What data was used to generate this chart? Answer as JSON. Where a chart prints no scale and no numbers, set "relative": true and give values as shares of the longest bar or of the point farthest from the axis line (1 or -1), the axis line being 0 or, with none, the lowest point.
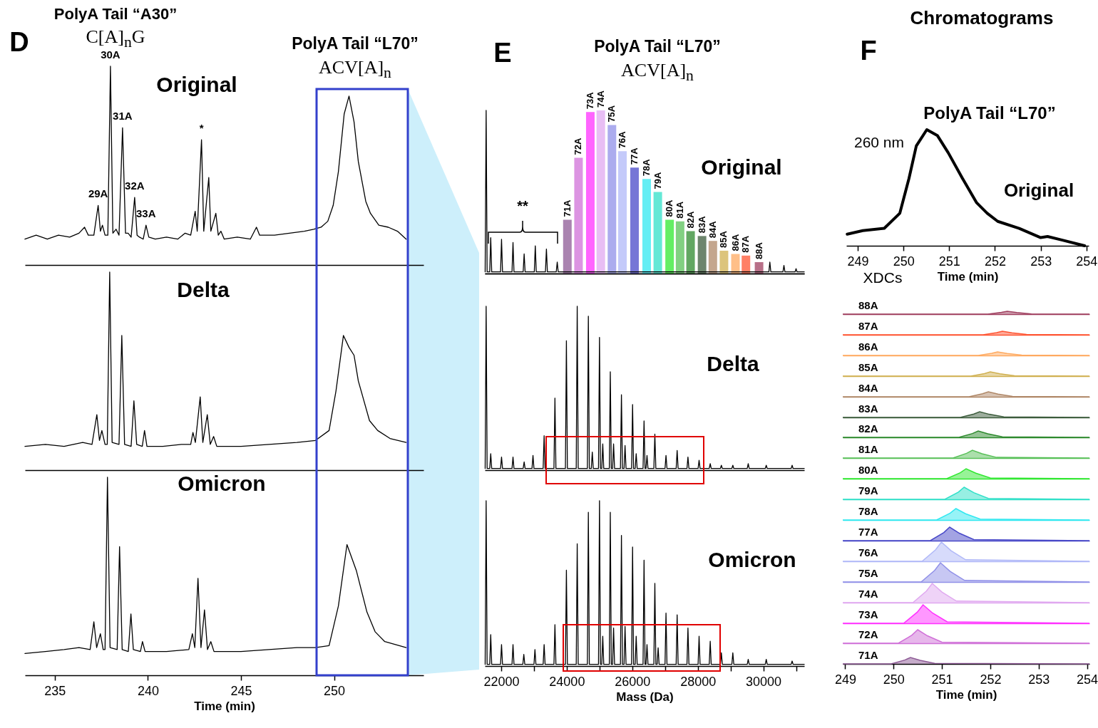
{
  "chart_data": [
    {
      "type": "line",
      "title": "Original",
      "relative": true,
      "xlim": [
        233.4,
        254.8
      ],
      "tick_labels": false,
      "annotations": [
        "D",
        "PolyA Tail “A30”",
        "C[A]$_{n}$G",
        "PolyA Tail “L70”",
        "ACV[A]$_{n}$",
        {
          "text": "29A",
          "x": 237.33,
          "y": 0.3
        },
        {
          "text": "30A",
          "x": 237.99,
          "y": 1.0
        },
        {
          "text": "31A",
          "x": 238.64,
          "y": 0.69
        },
        {
          "text": "32A",
          "x": 239.29,
          "y": 0.34
        },
        {
          "text": "33A",
          "x": 239.9,
          "y": 0.2
        },
        {
          "text": "*",
          "x": 242.88,
          "y": 0.63
        }
      ],
      "x": [
        233.4,
        234.0,
        234.6,
        235.2,
        235.8,
        236.3,
        236.6,
        236.8,
        237.1,
        237.33,
        237.45,
        237.56,
        237.7,
        237.85,
        237.99,
        238.12,
        238.29,
        238.45,
        238.64,
        238.8,
        238.94,
        239.1,
        239.29,
        239.42,
        239.55,
        239.75,
        239.9,
        240.05,
        240.4,
        241.0,
        241.6,
        242.0,
        242.3,
        242.54,
        242.65,
        242.88,
        243.0,
        243.27,
        243.38,
        243.65,
        243.78,
        243.92,
        244.1,
        244.8,
        245.5,
        245.83,
        246.0,
        246.8,
        247.6,
        248.4,
        248.9,
        249.3,
        249.66,
        249.95,
        250.23,
        250.54,
        250.8,
        251.07,
        251.3,
        251.46,
        251.7,
        251.95,
        252.4,
        252.91,
        253.4,
        253.87
      ],
      "series": [
        {
          "color": "#000000",
          "values": [
            0.13,
            0.15,
            0.13,
            0.15,
            0.14,
            0.16,
            0.19,
            0.15,
            0.15,
            0.3,
            0.17,
            0.2,
            0.15,
            0.15,
            1.0,
            0.16,
            0.18,
            0.15,
            0.69,
            0.16,
            0.16,
            0.14,
            0.34,
            0.15,
            0.14,
            0.13,
            0.2,
            0.14,
            0.13,
            0.14,
            0.13,
            0.16,
            0.15,
            0.27,
            0.17,
            0.63,
            0.17,
            0.44,
            0.17,
            0.26,
            0.15,
            0.17,
            0.13,
            0.14,
            0.13,
            0.19,
            0.15,
            0.15,
            0.16,
            0.17,
            0.18,
            0.19,
            0.22,
            0.3,
            0.47,
            0.76,
            0.85,
            0.72,
            0.52,
            0.44,
            0.32,
            0.26,
            0.2,
            0.19,
            0.17,
            0.13
          ]
        }
      ]
    },
    {
      "type": "line",
      "title": "Delta",
      "relative": true,
      "xlim": [
        233.4,
        254.8
      ],
      "tick_labels": false,
      "x": [
        233.4,
        234.5,
        235.5,
        236.5,
        237.0,
        237.26,
        237.4,
        237.53,
        237.7,
        237.82,
        237.95,
        238.08,
        238.45,
        238.6,
        238.75,
        239.1,
        239.25,
        239.4,
        239.7,
        239.82,
        239.95,
        240.8,
        241.8,
        242.3,
        242.42,
        242.55,
        242.81,
        242.95,
        243.19,
        243.35,
        243.53,
        243.7,
        245.0,
        246.5,
        248.0,
        249.0,
        249.73,
        250.1,
        250.5,
        250.8,
        251.07,
        251.3,
        251.57,
        251.9,
        252.34,
        253.0,
        253.87
      ],
      "series": [
        {
          "color": "#000000",
          "values": [
            0.12,
            0.13,
            0.12,
            0.14,
            0.13,
            0.28,
            0.15,
            0.2,
            0.13,
            0.13,
            1.0,
            0.14,
            0.13,
            0.68,
            0.13,
            0.12,
            0.35,
            0.13,
            0.12,
            0.2,
            0.12,
            0.12,
            0.13,
            0.13,
            0.19,
            0.14,
            0.37,
            0.14,
            0.28,
            0.13,
            0.17,
            0.12,
            0.12,
            0.13,
            0.14,
            0.15,
            0.2,
            0.4,
            0.68,
            0.62,
            0.58,
            0.45,
            0.36,
            0.25,
            0.2,
            0.16,
            0.14
          ]
        }
      ]
    },
    {
      "type": "line",
      "title": "Omicron",
      "relative": true,
      "xlim": [
        233.4,
        254.8
      ],
      "xticks": [
        235,
        240,
        245,
        250
      ],
      "xlabel": "Time (min)",
      "x": [
        233.4,
        234.5,
        235.5,
        236.3,
        236.9,
        237.1,
        237.25,
        237.45,
        237.6,
        237.7,
        237.83,
        237.97,
        238.35,
        238.48,
        238.62,
        238.95,
        239.09,
        239.22,
        239.6,
        239.71,
        239.85,
        241.0,
        242.2,
        242.39,
        242.52,
        242.69,
        242.85,
        243.04,
        243.2,
        243.38,
        243.55,
        245.0,
        246.5,
        248.0,
        249.0,
        249.73,
        250.23,
        250.69,
        251.19,
        251.76,
        252.2,
        252.72,
        253.87
      ],
      "series": [
        {
          "color": "#000000",
          "values": [
            0.11,
            0.12,
            0.13,
            0.14,
            0.13,
            0.27,
            0.14,
            0.21,
            0.13,
            0.13,
            1.0,
            0.14,
            0.13,
            0.65,
            0.13,
            0.12,
            0.31,
            0.13,
            0.12,
            0.17,
            0.12,
            0.12,
            0.13,
            0.21,
            0.14,
            0.49,
            0.14,
            0.33,
            0.13,
            0.17,
            0.12,
            0.12,
            0.13,
            0.14,
            0.14,
            0.15,
            0.35,
            0.66,
            0.53,
            0.32,
            0.22,
            0.17,
            0.14
          ]
        }
      ]
    },
    {
      "type": "bar",
      "title": "Original",
      "relative": true,
      "xlim": [
        21500,
        31250
      ],
      "tick_labels": false,
      "annotations": [
        "E",
        "PolyA Tail “L70”",
        "ACV[A]$_{n}$",
        "**",
        {
          "text": "71A",
          "x": 24020,
          "y": 0.33
        },
        {
          "text": "72A",
          "x": 24360,
          "y": 0.71
        },
        {
          "text": "73A",
          "x": 24720,
          "y": 0.99
        },
        {
          "text": "74A",
          "x": 25040,
          "y": 1.0
        },
        {
          "text": "75A",
          "x": 25380,
          "y": 0.91
        },
        {
          "text": "76A",
          "x": 25700,
          "y": 0.75
        },
        {
          "text": "77A",
          "x": 26070,
          "y": 0.65
        },
        {
          "text": "78A",
          "x": 26440,
          "y": 0.58
        },
        {
          "text": "79A",
          "x": 26780,
          "y": 0.5
        },
        {
          "text": "80A",
          "x": 27140,
          "y": 0.33
        },
        {
          "text": "81A",
          "x": 27460,
          "y": 0.32
        },
        {
          "text": "82A",
          "x": 27780,
          "y": 0.26
        },
        {
          "text": "83A",
          "x": 28130,
          "y": 0.23
        },
        {
          "text": "84A",
          "x": 28460,
          "y": 0.2
        },
        {
          "text": "85A",
          "x": 28800,
          "y": 0.14
        },
        {
          "text": "86A",
          "x": 29150,
          "y": 0.12
        },
        {
          "text": "87A",
          "x": 29470,
          "y": 0.11
        },
        {
          "text": "88A",
          "x": 29870,
          "y": 0.07
        }
      ],
      "series": [
        {
          "x": [
            24020,
            24360,
            24720,
            25040,
            25380,
            25700,
            26070,
            26440,
            26780,
            27140,
            27460,
            27780,
            28130,
            28460,
            28800,
            29150,
            29470,
            29870
          ],
          "values": [
            0.33,
            0.71,
            0.99,
            1.0,
            0.91,
            0.75,
            0.65,
            0.58,
            0.5,
            0.33,
            0.32,
            0.26,
            0.23,
            0.2,
            0.14,
            0.12,
            0.11,
            0.07
          ],
          "colors": [
            "#8e5a96",
            "#d070d8",
            "#ff30ff",
            "#e0a8f0",
            "#9090e8",
            "#b0b8f8",
            "#4848c8",
            "#30e8f0",
            "#30e0c8",
            "#30e830",
            "#58c058",
            "#2e8a2e",
            "#3c5c3c",
            "#b08868",
            "#d0b050",
            "#ffaa60",
            "#ff5533",
            "#a04060"
          ]
        }
      ]
    },
    {
      "type": "line",
      "relative": true,
      "xlim": [
        21500,
        31250
      ],
      "tick_labels": false,
      "series": [
        {
          "color": "#000000",
          "x": [
            21510,
            21540,
            21570,
            21650,
            21680,
            21710,
            21980,
            22010,
            22040,
            22330,
            22360,
            22390,
            22670,
            22700,
            22730,
            23010,
            23040,
            23070,
            23350,
            23380,
            23410,
            23680,
            23710,
            23740,
            30170,
            30200,
            30230,
            30600,
            30630,
            30660,
            30970,
            31000,
            31030,
            31250
          ],
          "values": [
            0.01,
            1.0,
            0.01,
            0.01,
            0.22,
            0.01,
            0.01,
            0.21,
            0.01,
            0.01,
            0.19,
            0.01,
            0.01,
            0.12,
            0.01,
            0.01,
            0.17,
            0.01,
            0.01,
            0.15,
            0.01,
            0.01,
            0.07,
            0.01,
            0.01,
            0.07,
            0.01,
            0.01,
            0.05,
            0.01,
            0.01,
            0.03,
            0.01,
            0.01
          ]
        }
      ]
    },
    {
      "type": "line",
      "title": "Delta",
      "relative": true,
      "xlim": [
        21500,
        31250
      ],
      "tick_labels": false,
      "x": [
        21510,
        21540,
        21570,
        21650,
        21680,
        21710,
        21980,
        22010,
        22040,
        22330,
        22360,
        22390,
        22670,
        22700,
        22730,
        22940,
        22970,
        23000,
        23280,
        23310,
        23340,
        23610,
        23640,
        23670,
        23960,
        23990,
        24020,
        24290,
        24320,
        24350,
        24630,
        24660,
        24690,
        24750,
        24780,
        24810,
        24970,
        25000,
        25030,
        25070,
        25100,
        25130,
        25300,
        25330,
        25360,
        25400,
        25430,
        25460,
        25640,
        25670,
        25700,
        25750,
        25780,
        25810,
        25980,
        26010,
        26040,
        26090,
        26120,
        26150,
        26330,
        26360,
        26390,
        26420,
        26450,
        26480,
        26660,
        26690,
        26720,
        27000,
        27030,
        27060,
        27340,
        27370,
        27400,
        27670,
        27700,
        27730,
        28010,
        28040,
        28070,
        28350,
        28380,
        28410,
        28690,
        28720,
        28750,
        29040,
        29070,
        29100,
        29510,
        29540,
        29570,
        30060,
        30090,
        30120,
        30850,
        30880,
        30910,
        31250
      ],
      "series": [
        {
          "color": "#000000",
          "values": [
            0.01,
            1.0,
            0.01,
            0.01,
            0.1,
            0.01,
            0.01,
            0.08,
            0.01,
            0.01,
            0.08,
            0.01,
            0.01,
            0.05,
            0.01,
            0.01,
            0.09,
            0.01,
            0.01,
            0.21,
            0.01,
            0.01,
            0.44,
            0.01,
            0.01,
            0.79,
            0.01,
            0.01,
            1.0,
            0.01,
            0.01,
            0.94,
            0.01,
            0.01,
            0.11,
            0.01,
            0.01,
            0.81,
            0.01,
            0.01,
            0.16,
            0.01,
            0.01,
            0.6,
            0.01,
            0.01,
            0.16,
            0.01,
            0.01,
            0.46,
            0.01,
            0.01,
            0.15,
            0.01,
            0.01,
            0.4,
            0.01,
            0.01,
            0.1,
            0.01,
            0.01,
            0.3,
            0.01,
            0.01,
            0.09,
            0.01,
            0.01,
            0.22,
            0.01,
            0.01,
            0.09,
            0.01,
            0.01,
            0.12,
            0.01,
            0.01,
            0.08,
            0.01,
            0.01,
            0.06,
            0.01,
            0.01,
            0.04,
            0.01,
            0.01,
            0.03,
            0.01,
            0.01,
            0.03,
            0.01,
            0.01,
            0.04,
            0.01,
            0.01,
            0.03,
            0.01,
            0.01,
            0.03,
            0.01,
            0.01
          ]
        }
      ]
    },
    {
      "type": "line",
      "title": "Omicron",
      "relative": true,
      "xlim": [
        21500,
        31250
      ],
      "xticks": [
        22000,
        {
          "value": 23000,
          "label": null
        },
        24000,
        {
          "value": 25000,
          "label": null
        },
        26000,
        {
          "value": 27000,
          "label": null
        },
        28000,
        {
          "value": 29000,
          "label": null
        },
        30000,
        {
          "value": 31000,
          "label": null
        }
      ],
      "xlabel": "Mass (Da)",
      "x": [
        21510,
        21540,
        21570,
        21650,
        21680,
        21710,
        21980,
        22010,
        22040,
        22330,
        22360,
        22390,
        22660,
        22690,
        22720,
        23000,
        23030,
        23060,
        23280,
        23310,
        23340,
        23610,
        23640,
        23670,
        23960,
        23990,
        24020,
        24290,
        24320,
        24350,
        24630,
        24660,
        24690,
        24970,
        25000,
        25030,
        25070,
        25100,
        25130,
        25300,
        25330,
        25360,
        25400,
        25430,
        25460,
        25640,
        25670,
        25700,
        25750,
        25780,
        25810,
        25980,
        26010,
        26040,
        26090,
        26120,
        26150,
        26330,
        26360,
        26390,
        26420,
        26450,
        26480,
        26660,
        26690,
        26720,
        26760,
        26790,
        26820,
        27000,
        27030,
        27060,
        27340,
        27370,
        27400,
        27670,
        27700,
        27730,
        28010,
        28040,
        28070,
        28350,
        28380,
        28410,
        28690,
        28720,
        28750,
        29040,
        29070,
        29100,
        29510,
        29540,
        29570,
        30060,
        30090,
        30120,
        30850,
        30880,
        30910,
        31250
      ],
      "series": [
        {
          "color": "#000000",
          "values": [
            0.01,
            1.0,
            0.01,
            0.01,
            0.19,
            0.01,
            0.01,
            0.13,
            0.01,
            0.01,
            0.13,
            0.01,
            0.01,
            0.07,
            0.01,
            0.01,
            0.1,
            0.01,
            0.01,
            0.13,
            0.01,
            0.01,
            0.25,
            0.01,
            0.01,
            0.58,
            0.01,
            0.01,
            0.74,
            0.01,
            0.01,
            0.93,
            0.01,
            0.01,
            1.0,
            0.01,
            0.01,
            0.18,
            0.01,
            0.01,
            0.93,
            0.01,
            0.01,
            0.23,
            0.01,
            0.01,
            0.79,
            0.01,
            0.01,
            0.24,
            0.01,
            0.01,
            0.72,
            0.01,
            0.01,
            0.18,
            0.01,
            0.01,
            0.64,
            0.01,
            0.01,
            0.13,
            0.01,
            0.01,
            0.5,
            0.01,
            0.01,
            0.11,
            0.01,
            0.01,
            0.32,
            0.01,
            0.01,
            0.31,
            0.01,
            0.01,
            0.23,
            0.01,
            0.01,
            0.18,
            0.01,
            0.01,
            0.15,
            0.01,
            0.01,
            0.08,
            0.01,
            0.01,
            0.08,
            0.01,
            0.01,
            0.04,
            0.01,
            0.01,
            0.04,
            0.01,
            0.01,
            0.03,
            0.01,
            0.01
          ]
        }
      ]
    },
    {
      "type": "line",
      "title": "PolyA Tail “L70”",
      "relative": true,
      "xlim": [
        248.75,
        254.05
      ],
      "xticks": [
        249,
        250,
        251,
        252,
        253,
        254
      ],
      "xlabel": "Time (min)",
      "annotations": [
        "Chromatograms",
        "F",
        "260 nm",
        "Original",
        "XDCs"
      ],
      "x": [
        248.77,
        249.11,
        249.58,
        249.92,
        250.12,
        250.28,
        250.51,
        250.74,
        250.98,
        251.29,
        251.6,
        251.83,
        252.06,
        252.53,
        253.0,
        253.15,
        253.46,
        253.96
      ],
      "series": [
        {
          "color": "#000000",
          "values": [
            0.1,
            0.13,
            0.15,
            0.28,
            0.58,
            0.86,
            1.0,
            0.95,
            0.8,
            0.58,
            0.37,
            0.28,
            0.21,
            0.15,
            0.07,
            0.08,
            0.05,
            0.0
          ]
        }
      ]
    },
    {
      "type": "area",
      "relative": true,
      "xlim": [
        248.95,
        254.05
      ],
      "tick_labels": false,
      "x": [
        248.95,
        251.95,
        252.23,
        252.35,
        252.55,
        252.85,
        254.05
      ],
      "series": [
        {
          "name": "88A",
          "color": "#a04060",
          "values": [
            0,
            0,
            0.6,
            1,
            0.55,
            0.08,
            0
          ]
        }
      ]
    },
    {
      "type": "area",
      "relative": true,
      "xlim": [
        248.95,
        254.05
      ],
      "tick_labels": false,
      "x": [
        248.95,
        251.85,
        252.13,
        252.25,
        252.45,
        252.75,
        254.05
      ],
      "series": [
        {
          "name": "87A",
          "color": "#ff5533",
          "values": [
            0,
            0,
            0.6,
            1,
            0.55,
            0.08,
            0
          ]
        }
      ]
    },
    {
      "type": "area",
      "relative": true,
      "xlim": [
        248.95,
        254.05
      ],
      "tick_labels": false,
      "x": [
        248.95,
        251.75,
        252.03,
        252.15,
        252.35,
        252.65,
        254.05
      ],
      "series": [
        {
          "name": "86A",
          "color": "#ffaa60",
          "values": [
            0,
            0,
            0.6,
            1,
            0.55,
            0.08,
            0
          ]
        }
      ]
    },
    {
      "type": "area",
      "relative": true,
      "xlim": [
        248.95,
        254.05
      ],
      "tick_labels": false,
      "x": [
        248.95,
        251.6,
        251.88,
        252.0,
        252.2,
        252.5,
        254.05
      ],
      "series": [
        {
          "name": "85A",
          "color": "#d0b050",
          "values": [
            0,
            0,
            0.6,
            1,
            0.55,
            0.08,
            0
          ]
        }
      ]
    },
    {
      "type": "area",
      "relative": true,
      "xlim": [
        248.95,
        254.05
      ],
      "tick_labels": false,
      "x": [
        248.95,
        251.56,
        251.84,
        251.96,
        252.16,
        252.46,
        254.05
      ],
      "series": [
        {
          "name": "84A",
          "color": "#b08868",
          "values": [
            0,
            0,
            0.6,
            1,
            0.55,
            0.08,
            0
          ]
        }
      ]
    },
    {
      "type": "area",
      "relative": true,
      "xlim": [
        248.95,
        254.05
      ],
      "tick_labels": false,
      "x": [
        248.95,
        251.38,
        251.66,
        251.78,
        251.98,
        252.28,
        254.05
      ],
      "series": [
        {
          "name": "83A",
          "color": "#3c5c3c",
          "values": [
            0,
            0,
            0.6,
            1,
            0.55,
            0.08,
            0
          ]
        }
      ]
    },
    {
      "type": "area",
      "relative": true,
      "xlim": [
        248.95,
        254.05
      ],
      "tick_labels": false,
      "x": [
        248.95,
        251.35,
        251.63,
        251.75,
        251.95,
        252.25,
        254.05
      ],
      "series": [
        {
          "name": "82A",
          "color": "#2e8a2e",
          "values": [
            0,
            0,
            0.6,
            1,
            0.55,
            0.08,
            0
          ]
        }
      ]
    },
    {
      "type": "area",
      "relative": true,
      "xlim": [
        248.95,
        254.05
      ],
      "tick_labels": false,
      "x": [
        248.95,
        251.23,
        251.51,
        251.63,
        251.83,
        252.13,
        254.05
      ],
      "series": [
        {
          "name": "81A",
          "color": "#58c058",
          "values": [
            0,
            0,
            0.6,
            1,
            0.55,
            0.08,
            0
          ]
        }
      ]
    },
    {
      "type": "area",
      "relative": true,
      "xlim": [
        248.95,
        254.05
      ],
      "tick_labels": false,
      "x": [
        248.95,
        251.1,
        251.38,
        251.5,
        251.7,
        252.0,
        254.05
      ],
      "series": [
        {
          "name": "80A",
          "color": "#30e830",
          "values": [
            0,
            0,
            0.6,
            1,
            0.55,
            0.08,
            0
          ]
        }
      ]
    },
    {
      "type": "area",
      "relative": true,
      "xlim": [
        248.95,
        254.05
      ],
      "tick_labels": false,
      "x": [
        248.95,
        251.06,
        251.34,
        251.46,
        251.66,
        251.96,
        254.05
      ],
      "series": [
        {
          "name": "79A",
          "color": "#30e0c8",
          "values": [
            0,
            0,
            0.6,
            1,
            0.55,
            0.08,
            0
          ]
        }
      ]
    },
    {
      "type": "area",
      "relative": true,
      "xlim": [
        248.95,
        254.05
      ],
      "tick_labels": false,
      "x": [
        248.95,
        250.89,
        251.17,
        251.29,
        251.49,
        251.79,
        254.05
      ],
      "series": [
        {
          "name": "78A",
          "color": "#30e8f0",
          "values": [
            0,
            0,
            0.6,
            1,
            0.55,
            0.08,
            0
          ]
        }
      ]
    },
    {
      "type": "area",
      "relative": true,
      "xlim": [
        248.95,
        254.05
      ],
      "tick_labels": false,
      "x": [
        248.95,
        250.76,
        251.04,
        251.16,
        251.36,
        251.66,
        254.05
      ],
      "series": [
        {
          "name": "77A",
          "color": "#4848c8",
          "values": [
            0,
            0,
            0.6,
            1,
            0.55,
            0.08,
            0
          ]
        }
      ]
    },
    {
      "type": "area",
      "relative": true,
      "xlim": [
        248.95,
        254.05
      ],
      "tick_labels": false,
      "x": [
        248.95,
        250.59,
        250.87,
        250.99,
        251.19,
        251.49,
        254.05
      ],
      "series": [
        {
          "name": "76A",
          "color": "#b0b8f8",
          "values": [
            0,
            0,
            0.6,
            1,
            0.55,
            0.08,
            0
          ]
        }
      ]
    },
    {
      "type": "area",
      "relative": true,
      "xlim": [
        248.95,
        254.05
      ],
      "tick_labels": false,
      "x": [
        248.95,
        250.57,
        250.85,
        250.97,
        251.17,
        251.47,
        254.05
      ],
      "series": [
        {
          "name": "75A",
          "color": "#9090e8",
          "values": [
            0,
            0,
            0.6,
            1,
            0.55,
            0.08,
            0
          ]
        }
      ]
    },
    {
      "type": "area",
      "relative": true,
      "xlim": [
        248.95,
        254.05
      ],
      "tick_labels": false,
      "x": [
        248.95,
        250.4,
        250.68,
        250.8,
        251.0,
        251.3,
        254.05
      ],
      "series": [
        {
          "name": "74A",
          "color": "#e0a8f0",
          "values": [
            0,
            0,
            0.6,
            1,
            0.55,
            0.08,
            0
          ]
        }
      ]
    },
    {
      "type": "area",
      "relative": true,
      "xlim": [
        248.95,
        254.05
      ],
      "tick_labels": false,
      "x": [
        248.95,
        250.21,
        250.49,
        250.61,
        250.81,
        251.11,
        254.05
      ],
      "series": [
        {
          "name": "73A",
          "color": "#ff30ff",
          "values": [
            0,
            0,
            0.6,
            1,
            0.55,
            0.08,
            0
          ]
        }
      ]
    },
    {
      "type": "area",
      "relative": true,
      "xlim": [
        248.95,
        254.05
      ],
      "tick_labels": false,
      "x": [
        248.95,
        250.1,
        250.38,
        250.5,
        250.7,
        251.0,
        254.05
      ],
      "series": [
        {
          "name": "72A",
          "color": "#d070d8",
          "values": [
            0,
            0,
            0.6,
            1,
            0.55,
            0.08,
            0
          ]
        }
      ]
    },
    {
      "type": "area",
      "relative": true,
      "xlim": [
        248.95,
        254.05
      ],
      "xticks": [
        249,
        250,
        251,
        252,
        253,
        254
      ],
      "xlabel": "Time (min)",
      "x": [
        248.95,
        249.95,
        250.23,
        250.35,
        250.55,
        250.85,
        254.05
      ],
      "series": [
        {
          "name": "71A",
          "color": "#8e5a96",
          "values": [
            0,
            0,
            0.6,
            1,
            0.55,
            0.08,
            0
          ]
        }
      ]
    }
  ]
}
